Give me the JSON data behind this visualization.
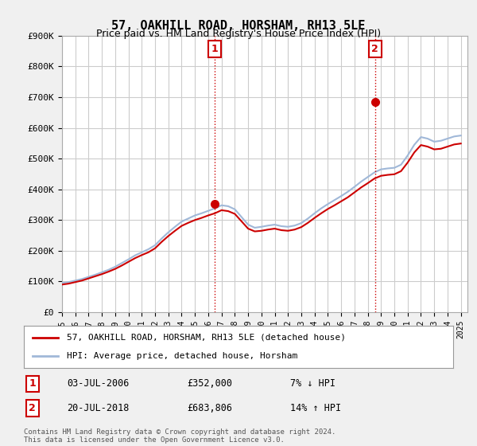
{
  "title": "57, OAKHILL ROAD, HORSHAM, RH13 5LE",
  "subtitle": "Price paid vs. HM Land Registry's House Price Index (HPI)",
  "xlabel": "",
  "ylabel": "",
  "ylim": [
    0,
    900000
  ],
  "yticks": [
    0,
    100000,
    200000,
    300000,
    400000,
    500000,
    600000,
    700000,
    800000,
    900000
  ],
  "ytick_labels": [
    "£0",
    "£100K",
    "£200K",
    "£300K",
    "£400K",
    "£500K",
    "£600K",
    "£700K",
    "£800K",
    "£900K"
  ],
  "xlim_start": 1995.0,
  "xlim_end": 2025.5,
  "background_color": "#f0f0f0",
  "plot_bg_color": "#ffffff",
  "grid_color": "#cccccc",
  "red_line_color": "#cc0000",
  "blue_line_color": "#a0b8d8",
  "transaction1": {
    "year": 2006.5,
    "price": 352000,
    "label": "1",
    "date": "03-JUL-2006",
    "amount": "£352,000",
    "note": "7% ↓ HPI"
  },
  "transaction2": {
    "year": 2018.55,
    "price": 683806,
    "label": "2",
    "date": "20-JUL-2018",
    "amount": "£683,806",
    "note": "14% ↑ HPI"
  },
  "legend_label_red": "57, OAKHILL ROAD, HORSHAM, RH13 5LE (detached house)",
  "legend_label_blue": "HPI: Average price, detached house, Horsham",
  "footnote": "Contains HM Land Registry data © Crown copyright and database right 2024.\nThis data is licensed under the Open Government Licence v3.0.",
  "hpi_years": [
    1995,
    1995.5,
    1996,
    1996.5,
    1997,
    1997.5,
    1998,
    1998.5,
    1999,
    1999.5,
    2000,
    2000.5,
    2001,
    2001.5,
    2002,
    2002.5,
    2003,
    2003.5,
    2004,
    2004.5,
    2005,
    2005.5,
    2006,
    2006.5,
    2007,
    2007.5,
    2008,
    2008.5,
    2009,
    2009.5,
    2010,
    2010.5,
    2011,
    2011.5,
    2012,
    2012.5,
    2013,
    2013.5,
    2014,
    2014.5,
    2015,
    2015.5,
    2016,
    2016.5,
    2017,
    2017.5,
    2018,
    2018.5,
    2019,
    2019.5,
    2020,
    2020.5,
    2021,
    2021.5,
    2022,
    2022.5,
    2023,
    2023.5,
    2024,
    2024.5,
    2025
  ],
  "hpi_values": [
    95000,
    98000,
    103000,
    108000,
    115000,
    122000,
    130000,
    138000,
    148000,
    160000,
    172000,
    185000,
    195000,
    205000,
    218000,
    240000,
    260000,
    278000,
    295000,
    305000,
    315000,
    322000,
    330000,
    338000,
    348000,
    345000,
    335000,
    310000,
    285000,
    275000,
    278000,
    282000,
    285000,
    280000,
    278000,
    282000,
    290000,
    305000,
    322000,
    338000,
    352000,
    365000,
    378000,
    392000,
    408000,
    425000,
    440000,
    455000,
    465000,
    468000,
    470000,
    480000,
    510000,
    545000,
    570000,
    565000,
    555000,
    558000,
    565000,
    572000,
    575000
  ],
  "red_years": [
    1995,
    1995.5,
    1996,
    1996.5,
    1997,
    1997.5,
    1998,
    1998.5,
    1999,
    1999.5,
    2000,
    2000.5,
    2001,
    2001.5,
    2002,
    2002.5,
    2003,
    2003.5,
    2004,
    2004.5,
    2005,
    2005.5,
    2006,
    2006.5,
    2007,
    2007.5,
    2008,
    2008.5,
    2009,
    2009.5,
    2010,
    2010.5,
    2011,
    2011.5,
    2012,
    2012.5,
    2013,
    2013.5,
    2014,
    2014.5,
    2015,
    2015.5,
    2016,
    2016.5,
    2017,
    2017.5,
    2018,
    2018.5,
    2019,
    2019.5,
    2020,
    2020.5,
    2021,
    2021.5,
    2022,
    2022.5,
    2023,
    2023.5,
    2024,
    2024.5,
    2025
  ],
  "red_values": [
    90000,
    93000,
    98000,
    103000,
    110000,
    117000,
    124000,
    132000,
    141000,
    152000,
    164000,
    176000,
    186000,
    195000,
    208000,
    229000,
    248000,
    265000,
    281000,
    291000,
    300000,
    307000,
    315000,
    322000,
    332000,
    329000,
    320000,
    296000,
    272000,
    263000,
    265000,
    269000,
    272000,
    267000,
    265000,
    269000,
    277000,
    291000,
    307000,
    322000,
    336000,
    348000,
    361000,
    374000,
    390000,
    406000,
    420000,
    435000,
    444000,
    447000,
    449000,
    459000,
    487000,
    520000,
    544000,
    539000,
    530000,
    532000,
    539000,
    546000,
    549000
  ],
  "xtick_years": [
    1995,
    1996,
    1997,
    1998,
    1999,
    2000,
    2001,
    2002,
    2003,
    2004,
    2005,
    2006,
    2007,
    2008,
    2009,
    2010,
    2011,
    2012,
    2013,
    2014,
    2015,
    2016,
    2017,
    2018,
    2019,
    2020,
    2021,
    2022,
    2023,
    2024,
    2025
  ]
}
